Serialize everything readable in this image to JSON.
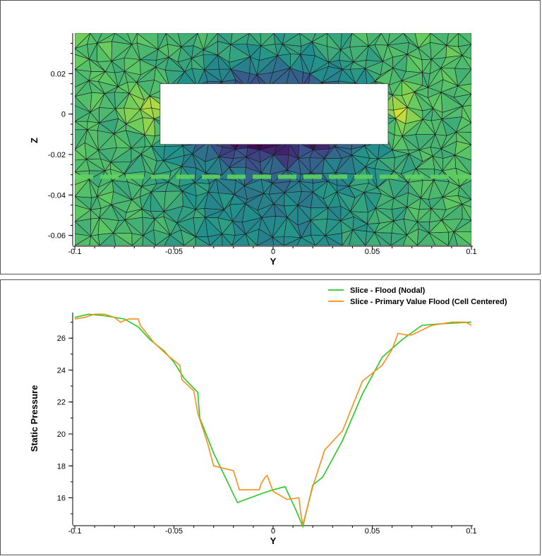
{
  "chart_data": [
    {
      "type": "heatmap",
      "xlabel": "Y",
      "ylabel": "Z",
      "xlim": [
        -0.1,
        0.1
      ],
      "ylim": [
        -0.065,
        0.04
      ],
      "x_ticks": [
        -0.1,
        -0.05,
        0,
        0.05,
        0.1
      ],
      "x_tick_labels": [
        "-0.1",
        "-0.05",
        "0",
        "0.05",
        "0.1"
      ],
      "y_ticks": [
        0.02,
        0,
        -0.02,
        -0.04,
        -0.06
      ],
      "y_tick_labels": [
        "0.02",
        "0",
        "-0.02",
        "-0.04",
        "-0.06"
      ],
      "cutout": {
        "y_range": [
          -0.057,
          0.058
        ],
        "z_range": [
          -0.015,
          0.015
        ]
      },
      "slice_line_z": -0.031,
      "colors": {
        "low": "#440154",
        "mid": "#21918c",
        "high": "#fde725"
      }
    },
    {
      "type": "line",
      "xlabel": "Y",
      "ylabel": "Static Pressure",
      "xlim": [
        -0.1,
        0.1
      ],
      "ylim": [
        14.3,
        27.6
      ],
      "x_ticks": [
        -0.1,
        -0.05,
        0,
        0.05,
        0.1
      ],
      "x_tick_labels": [
        "-0.1",
        "-0.05",
        "0",
        "0.05",
        "0.1"
      ],
      "y_ticks": [
        16,
        18,
        20,
        22,
        24,
        26
      ],
      "y_tick_labels": [
        "16",
        "18",
        "20",
        "22",
        "24",
        "26"
      ],
      "legend_position": "top-right",
      "series": [
        {
          "name": "Slice - Flood (Nodal)",
          "color": "#22cc22",
          "x": [
            -0.1,
            -0.093,
            -0.085,
            -0.075,
            -0.068,
            -0.062,
            -0.055,
            -0.05,
            -0.045,
            -0.038,
            -0.037,
            -0.03,
            -0.018,
            -0.005,
            0.0,
            0.006,
            0.012,
            0.015,
            0.02,
            0.025,
            0.035,
            0.045,
            0.055,
            0.065,
            0.075,
            0.085,
            0.1
          ],
          "y": [
            27.3,
            27.5,
            27.4,
            27.2,
            26.7,
            25.9,
            25.2,
            24.5,
            23.5,
            22.6,
            21.0,
            18.8,
            15.7,
            16.3,
            16.5,
            16.7,
            15.1,
            14.2,
            16.8,
            17.3,
            19.6,
            22.5,
            24.8,
            25.9,
            26.8,
            26.9,
            27.0
          ]
        },
        {
          "name": "Slice - Primary Value Flood (Cell Centered)",
          "color": "#ff8c1a",
          "x": [
            -0.1,
            -0.095,
            -0.09,
            -0.085,
            -0.08,
            -0.077,
            -0.073,
            -0.068,
            -0.067,
            -0.06,
            -0.053,
            -0.047,
            -0.046,
            -0.04,
            -0.038,
            -0.033,
            -0.03,
            -0.02,
            -0.017,
            -0.007,
            -0.006,
            -0.004,
            -0.003,
            0.0,
            0.007,
            0.013,
            0.014,
            0.015,
            0.02,
            0.026,
            0.035,
            0.045,
            0.055,
            0.06,
            0.063,
            0.067,
            0.07,
            0.08,
            0.09,
            0.097,
            0.1
          ],
          "y": [
            27.2,
            27.3,
            27.5,
            27.5,
            27.3,
            27.0,
            27.2,
            27.2,
            26.8,
            25.7,
            24.9,
            24.3,
            23.4,
            22.7,
            21.3,
            19.4,
            18.0,
            17.7,
            16.5,
            16.5,
            16.9,
            17.3,
            17.4,
            16.4,
            15.9,
            16.0,
            15.0,
            14.3,
            16.7,
            19.0,
            20.2,
            23.3,
            24.3,
            25.3,
            26.3,
            26.2,
            26.2,
            26.8,
            27.0,
            27.0,
            26.8
          ]
        }
      ]
    }
  ]
}
